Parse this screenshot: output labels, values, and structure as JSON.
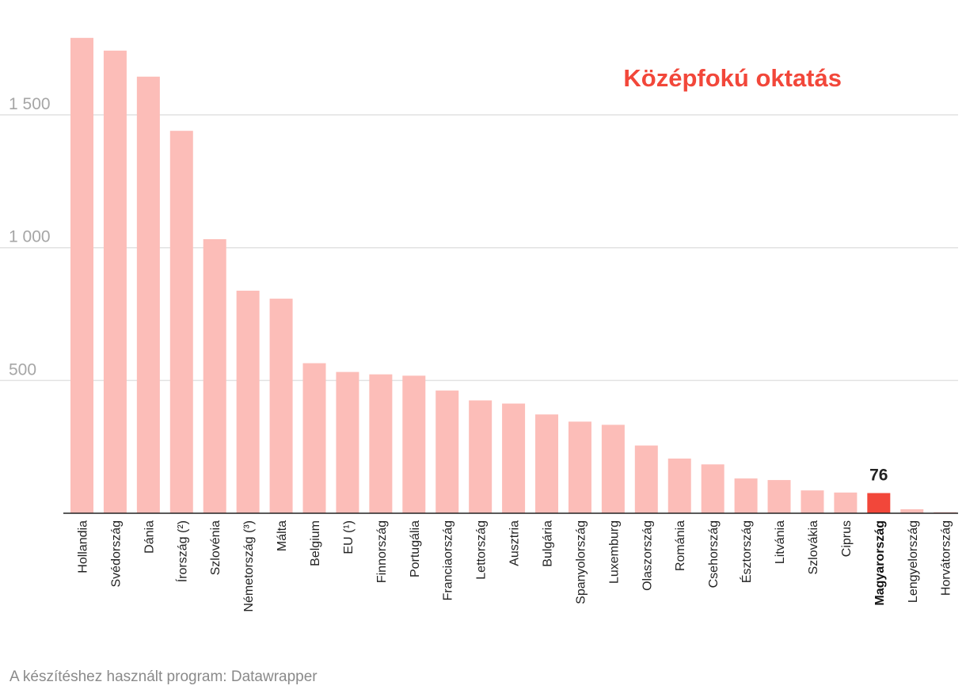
{
  "chart_data": {
    "type": "bar",
    "title": "Középfokú oktatás",
    "xlabel": "",
    "ylabel": "",
    "ylim": [
      0,
      1800
    ],
    "yticks": [
      500,
      1000,
      1500
    ],
    "ytick_labels": [
      "500",
      "1 000",
      "1 500"
    ],
    "grid": true,
    "categories": [
      "Hollandia",
      "Svédország",
      "Dánia",
      "Írország (²)",
      "Szlovénia",
      "Németország (³)",
      "Málta",
      "Belgium",
      "EU (¹)",
      "Finnország",
      "Portugália",
      "Franciaország",
      "Lettország",
      "Ausztria",
      "Bulgária",
      "Spanyolország",
      "Luxemburg",
      "Olaszország",
      "Románia",
      "Csehország",
      "Észtország",
      "Litvánia",
      "Szlovákia",
      "Ciprus",
      "Magyarország",
      "Lengyelország",
      "Horvátország"
    ],
    "values": [
      1790,
      1742,
      1644,
      1440,
      1032,
      838,
      808,
      565,
      532,
      523,
      518,
      462,
      425,
      413,
      372,
      345,
      333,
      255,
      206,
      184,
      131,
      125,
      86,
      78,
      76,
      15,
      4
    ],
    "highlight": {
      "category": "Magyarország",
      "label": "76"
    },
    "colors": {
      "bar": "#fcbdb8",
      "highlight": "#f2473a",
      "title": "#f2473a",
      "grid": "#e2e2e2",
      "axis": "#222222"
    }
  },
  "footer": "A készítéshez használt program: Datawrapper"
}
